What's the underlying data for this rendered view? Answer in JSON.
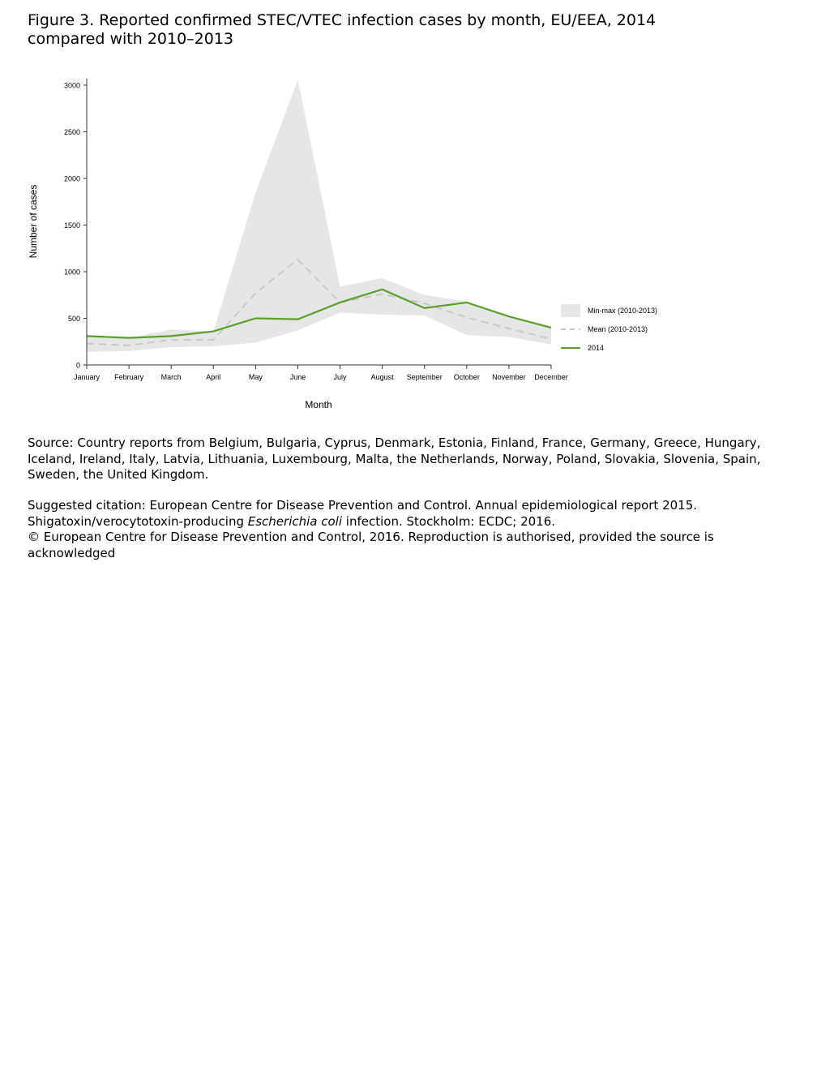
{
  "title": "Figure 3. Reported confirmed STEC/VTEC infection cases by month, EU/EEA, 2014 compared with 2010–2013",
  "source": "Source: Country reports from Belgium, Bulgaria, Cyprus, Denmark, Estonia, Finland, France, Germany, Greece, Hungary, Iceland, Ireland, Italy, Latvia, Lithuania, Luxembourg, Malta, the Netherlands, Norway, Poland, Slovakia, Slovenia, Spain, Sweden, the United Kingdom.",
  "citation": {
    "prefix": "Suggested citation: European Centre for Disease Prevention and Control. Annual epidemiological report 2015. Shigatoxin/verocytotoxin-producing ",
    "italic": "Escherichia coli",
    "suffix": " infection. Stockholm: ECDC; 2016.",
    "copyright": "© European Centre for Disease Prevention and Control, 2016. Reproduction is authorised, provided the source is acknowledged"
  },
  "colors": {
    "band": "#e6e6e6",
    "mean": "#c8c8c8",
    "line2014": "#5aa02c"
  },
  "chart_data": {
    "type": "line",
    "xlabel": "Month",
    "ylabel": "Number of cases",
    "ylim": [
      0,
      3000
    ],
    "yticks": [
      0,
      500,
      1000,
      1500,
      2000,
      2500,
      3000
    ],
    "categories": [
      "January",
      "February",
      "March",
      "April",
      "May",
      "June",
      "July",
      "August",
      "September",
      "October",
      "November",
      "December"
    ],
    "band": {
      "name": "Min-max (2010-2013)",
      "min": [
        140,
        150,
        190,
        200,
        240,
        370,
        560,
        540,
        530,
        320,
        300,
        220
      ],
      "max": [
        310,
        290,
        380,
        360,
        1850,
        3060,
        840,
        930,
        750,
        680,
        520,
        400
      ]
    },
    "series": [
      {
        "name": "Mean (2010-2013)",
        "style": "dashed",
        "values": [
          230,
          210,
          270,
          270,
          770,
          1130,
          670,
          760,
          660,
          510,
          390,
          280
        ]
      },
      {
        "name": "2014",
        "style": "solid",
        "values": [
          310,
          290,
          310,
          360,
          500,
          490,
          670,
          810,
          610,
          670,
          520,
          400
        ]
      }
    ],
    "legend": "right"
  }
}
